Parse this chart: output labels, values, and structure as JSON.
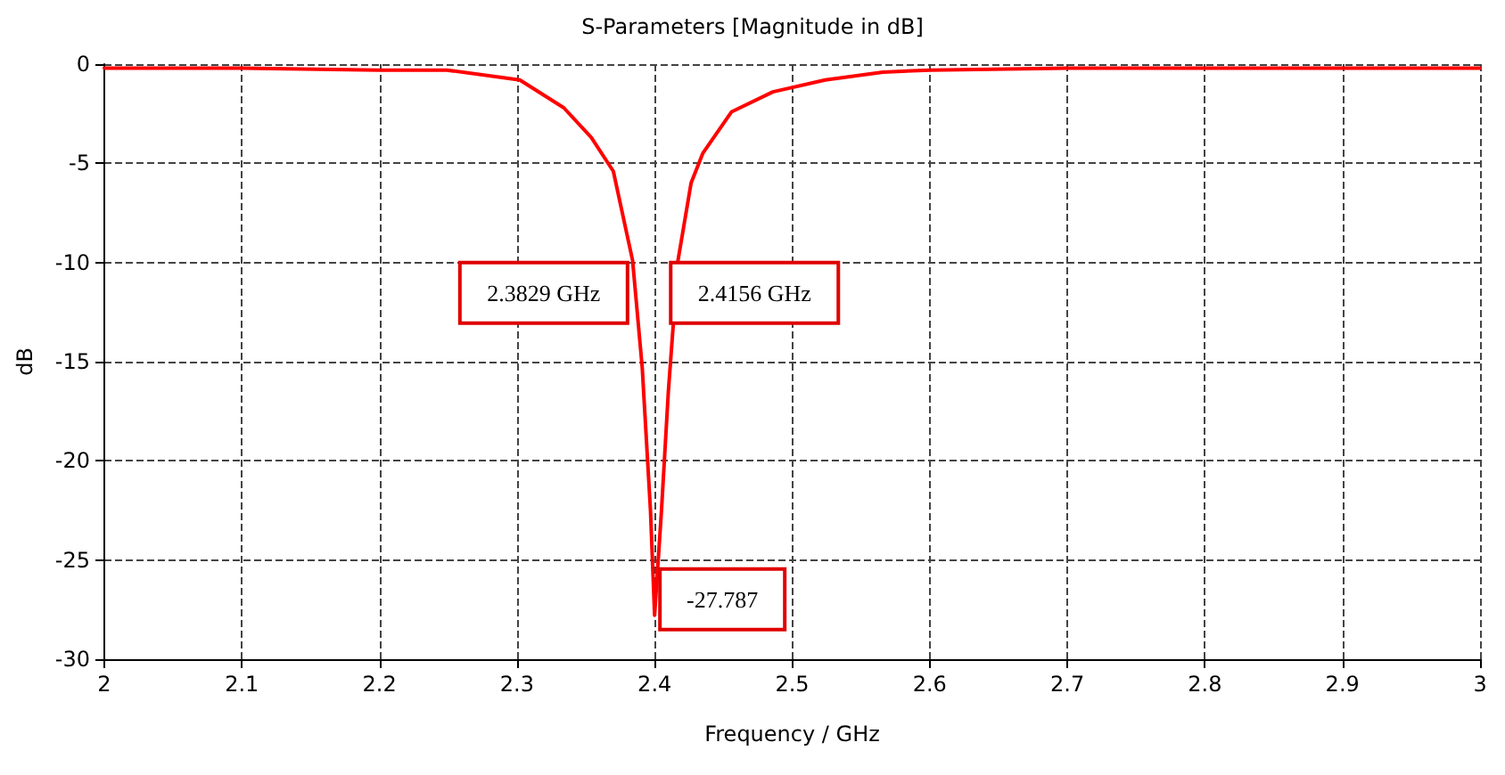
{
  "chart_data": {
    "type": "line",
    "title": "S-Parameters [Magnitude in dB]",
    "xlabel": "Frequency / GHz",
    "ylabel": "dB",
    "x": [
      2.0,
      2.1,
      2.2,
      2.249,
      2.302,
      2.334,
      2.354,
      2.37,
      2.384,
      2.391,
      2.397,
      2.4,
      2.405,
      2.41,
      2.417,
      2.4265,
      2.435,
      2.456,
      2.486,
      2.524,
      2.566,
      2.6,
      2.7,
      2.8,
      2.9,
      3.0
    ],
    "series": [
      {
        "color": "#ff0000",
        "values": [
          -0.2,
          -0.2,
          -0.3,
          -0.3,
          -0.8,
          -2.2,
          -3.7,
          -5.4,
          -9.9,
          -15.3,
          -22.5,
          -27.787,
          -22.5,
          -16.5,
          -9.9,
          -6.0,
          -4.5,
          -2.4,
          -1.4,
          -0.8,
          -0.4,
          -0.3,
          -0.2,
          -0.2,
          -0.2,
          -0.2
        ]
      }
    ],
    "xlim": [
      2,
      3
    ],
    "xticks": [
      2,
      2.1,
      2.2,
      2.3,
      2.4,
      2.5,
      2.6,
      2.7,
      2.8,
      2.9,
      3
    ],
    "ylim": [
      -30,
      0
    ],
    "yticks": [
      -30,
      -25,
      -20,
      -15,
      -10,
      -5,
      0
    ],
    "grid": true,
    "marker": "none",
    "line_style": "solid",
    "annotations": [
      {
        "text": "2.3829 GHz",
        "x": 2.3829,
        "y": -10
      },
      {
        "text": "2.4156 GHz",
        "x": 2.4156,
        "y": -10
      },
      {
        "text": "-27.787",
        "x": 2.4,
        "y": -27.787
      }
    ]
  }
}
